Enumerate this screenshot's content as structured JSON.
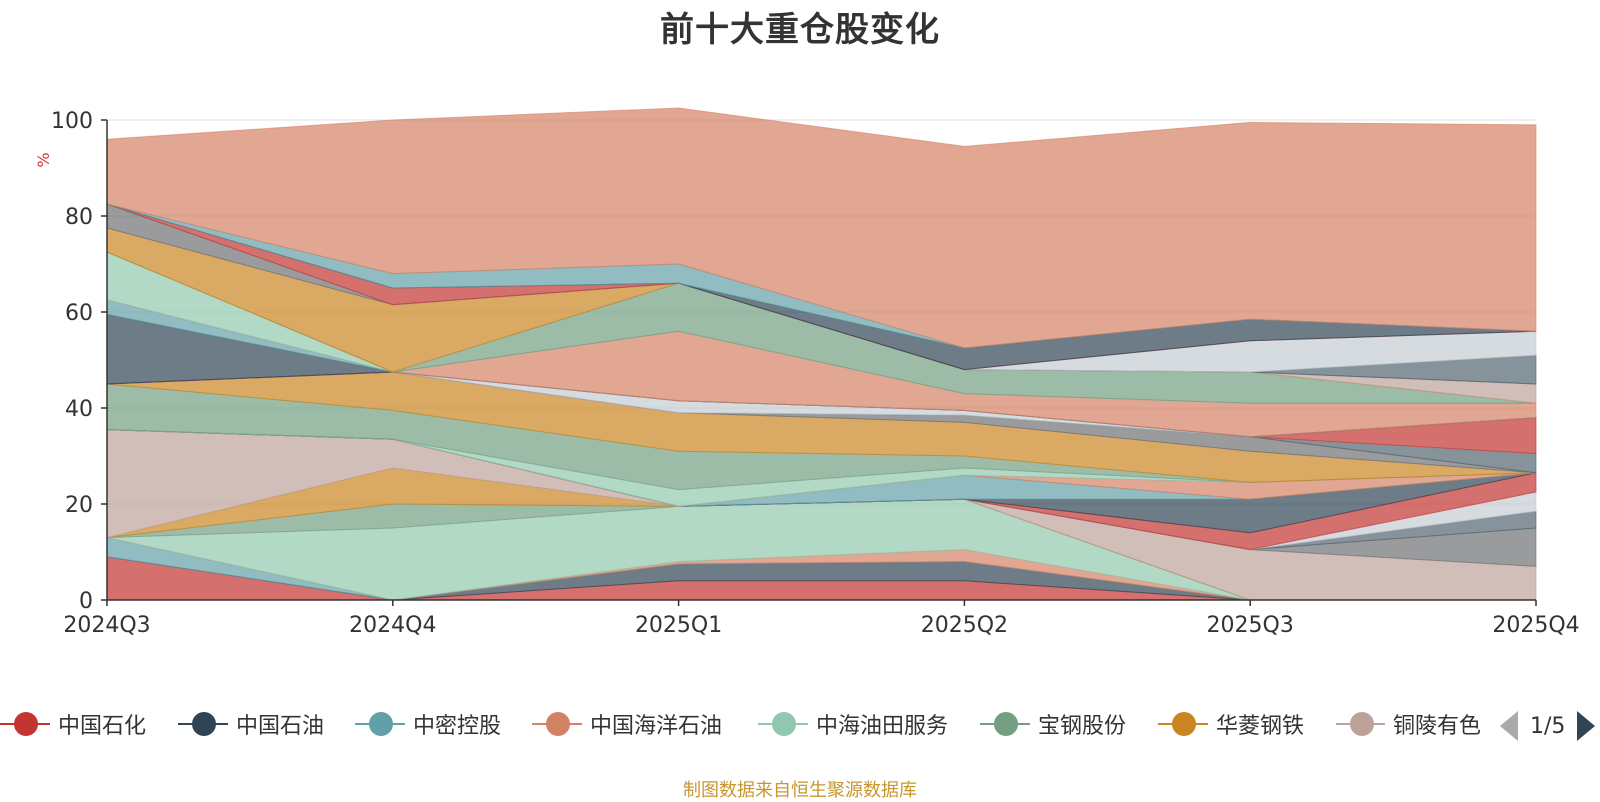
{
  "chart_data": {
    "type": "area",
    "stacked": true,
    "title": "前十大重仓股变化",
    "ylabel": "%",
    "ylim": [
      0,
      100
    ],
    "yticks": [
      0,
      20,
      40,
      60,
      80,
      100
    ],
    "x": [
      "2024Q3",
      "2024Q4",
      "2025Q1",
      "2025Q2",
      "2025Q3",
      "2025Q4"
    ],
    "grid": true,
    "legend_position": "bottom",
    "series": [
      {
        "name": "中国石化",
        "values": [
          9,
          0,
          4,
          4,
          0,
          0
        ]
      },
      {
        "name": "中国石油",
        "values": [
          0,
          0,
          3.5,
          4,
          0,
          0
        ]
      },
      {
        "name": "中密控股",
        "values": [
          4,
          0,
          0,
          0,
          0,
          0
        ]
      },
      {
        "name": "中国海洋石油",
        "values": [
          0,
          0,
          0.5,
          2.5,
          0,
          0
        ]
      },
      {
        "name": "中海油田服务",
        "values": [
          0,
          15,
          11.5,
          10.5,
          0,
          0
        ]
      },
      {
        "name": "宝钢股份",
        "values": [
          0,
          5,
          0,
          0,
          0,
          0
        ]
      },
      {
        "name": "华菱钢铁",
        "values": [
          0,
          7.5,
          0,
          0,
          0,
          0
        ]
      },
      {
        "name": "铜陵有色",
        "values": [
          22.5,
          6,
          0,
          0,
          10.5,
          7
        ]
      },
      {
        "values": [
          0,
          0,
          0,
          0,
          0,
          8
        ]
      },
      {
        "values": [
          0,
          0,
          0,
          0,
          0,
          3.5
        ]
      },
      {
        "values": [
          0,
          0,
          0,
          0,
          0,
          4
        ]
      },
      {
        "values": [
          0,
          0,
          0,
          0,
          3.5,
          4
        ]
      },
      {
        "values": [
          0,
          0,
          0,
          0,
          7,
          0
        ]
      },
      {
        "values": [
          0,
          0,
          0,
          5,
          0,
          0
        ]
      },
      {
        "values": [
          0,
          0,
          0,
          0,
          3.5,
          0
        ]
      },
      {
        "values": [
          0,
          0,
          3.5,
          1.5,
          0,
          0
        ]
      },
      {
        "values": [
          9.5,
          6,
          8,
          2.5,
          0,
          0
        ]
      },
      {
        "values": [
          0,
          8,
          8,
          7,
          6.5,
          0
        ]
      },
      {
        "values": [
          0,
          0,
          0,
          0,
          0,
          0
        ]
      },
      {
        "values": [
          0,
          0,
          0,
          1.5,
          3,
          0
        ]
      },
      {
        "values": [
          0,
          0,
          0,
          0,
          0,
          4
        ]
      },
      {
        "values": [
          0,
          0,
          2.5,
          1,
          0,
          0
        ]
      },
      {
        "values": [
          0,
          0,
          0,
          0,
          0,
          7.5
        ]
      },
      {
        "values": [
          14.5,
          0,
          0,
          0,
          0,
          0
        ]
      },
      {
        "values": [
          3,
          0,
          0,
          0,
          0,
          0
        ]
      },
      {
        "values": [
          0,
          0,
          14.5,
          3.5,
          7,
          3
        ]
      },
      {
        "values": [
          10,
          0,
          0,
          0,
          0,
          0
        ]
      },
      {
        "values": [
          0,
          0,
          10,
          5,
          6.5,
          0
        ]
      },
      {
        "values": [
          5,
          14,
          0,
          0,
          0,
          0
        ]
      },
      {
        "values": [
          0,
          0,
          0,
          0,
          0,
          4
        ]
      },
      {
        "values": [
          5,
          0,
          0,
          0,
          0,
          0
        ]
      },
      {
        "values": [
          0,
          0,
          0,
          0,
          0,
          6
        ]
      },
      {
        "values": [
          0,
          0,
          0,
          0,
          6.5,
          5
        ]
      },
      {
        "values": [
          0,
          3.5,
          0,
          0,
          0,
          0
        ]
      },
      {
        "values": [
          0,
          0,
          0,
          4.5,
          4.5,
          0
        ]
      },
      {
        "values": [
          0,
          3,
          4,
          0,
          0,
          0
        ]
      },
      {
        "values": [
          13.5,
          32,
          32.5,
          42,
          41,
          43
        ]
      }
    ]
  },
  "palette": [
    "#c23531",
    "#2f4554",
    "#61a0a8",
    "#d48265",
    "#91c7ae",
    "#749f83",
    "#ca8622",
    "#bda29a",
    "#6e7074",
    "#546570",
    "#c4ccd3"
  ],
  "legend": {
    "items": [
      "中国石化",
      "中国石油",
      "中密控股",
      "中国海洋石油",
      "中海油田服务",
      "宝钢股份",
      "华菱钢铁",
      "铜陵有色"
    ],
    "colors": [
      "#c23531",
      "#2f4554",
      "#61a0a8",
      "#d48265",
      "#91c7ae",
      "#749f83",
      "#ca8622",
      "#bda29a"
    ],
    "page": "1/5"
  },
  "source": "制图数据来自恒生聚源数据库"
}
